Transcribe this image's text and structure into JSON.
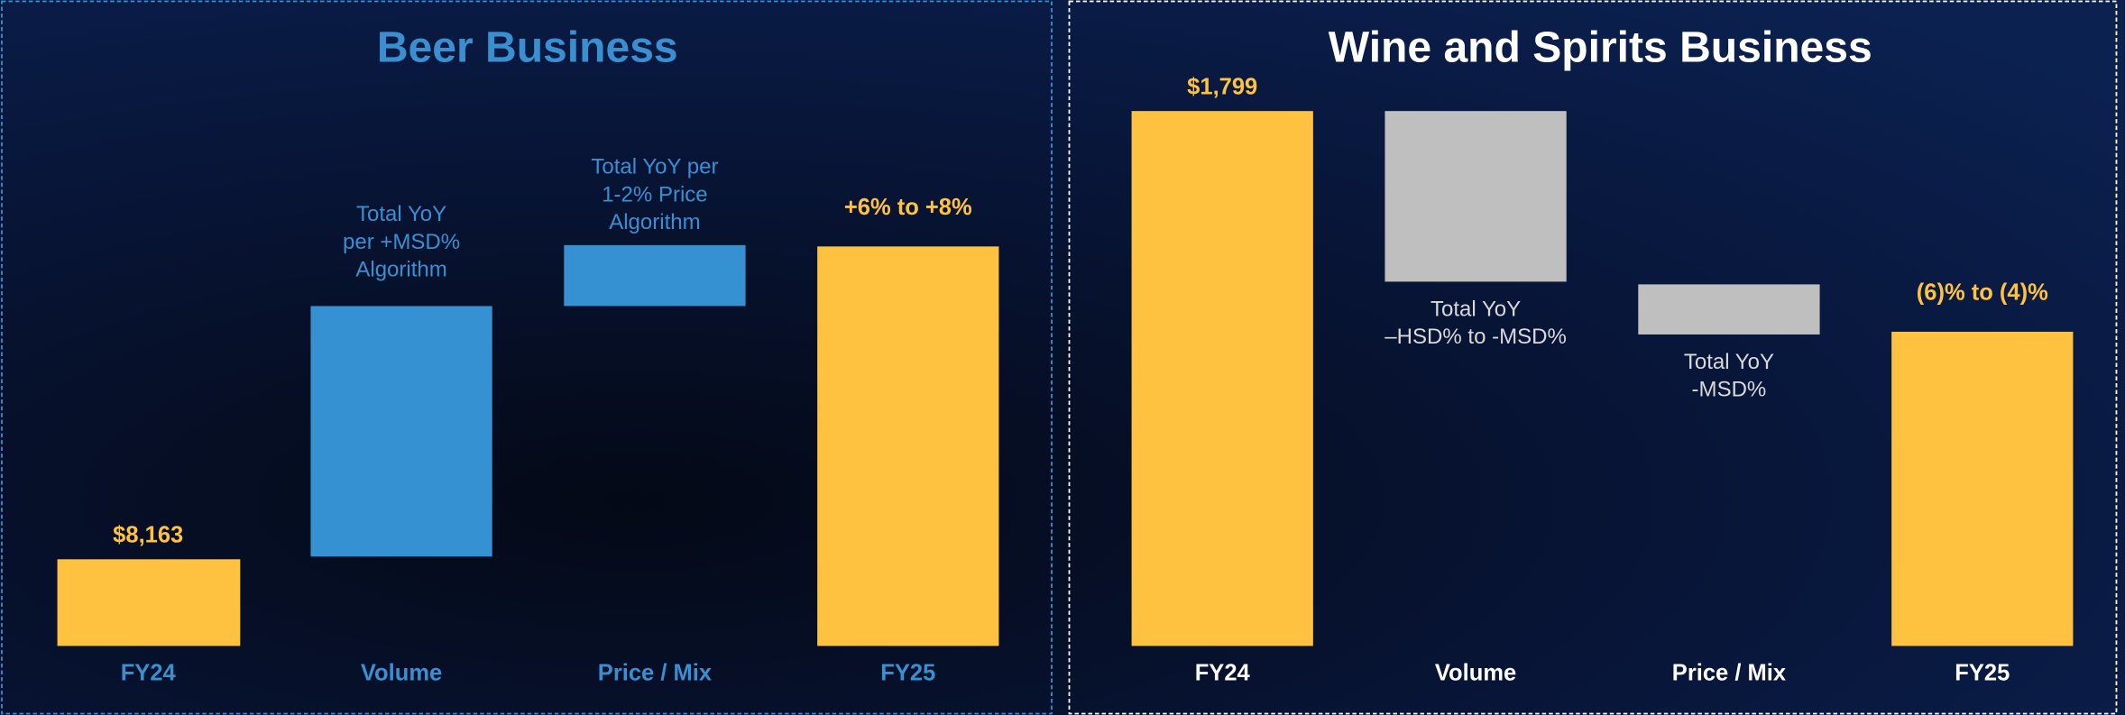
{
  "panels": [
    {
      "title": "Beer Business",
      "categories": [
        "FY24",
        "Volume",
        "Price / Mix",
        "FY25"
      ],
      "annotations": [
        [
          "$8,163"
        ],
        [
          "Total YoY",
          "per +MSD%",
          "Algorithm"
        ],
        [
          "Total YoY per",
          "1-2% Price",
          "Algorithm"
        ],
        [
          "+6% to +8%"
        ]
      ]
    },
    {
      "title": "Wine and Spirits Business",
      "categories": [
        "FY24",
        "Volume",
        "Price / Mix",
        "FY25"
      ],
      "annotations": [
        [
          "$1,799"
        ],
        [
          "Total YoY",
          "–HSD% to -MSD%"
        ],
        [
          "Total YoY",
          "-MSD%"
        ],
        [
          "(6)% to (4)%"
        ]
      ]
    }
  ]
}
